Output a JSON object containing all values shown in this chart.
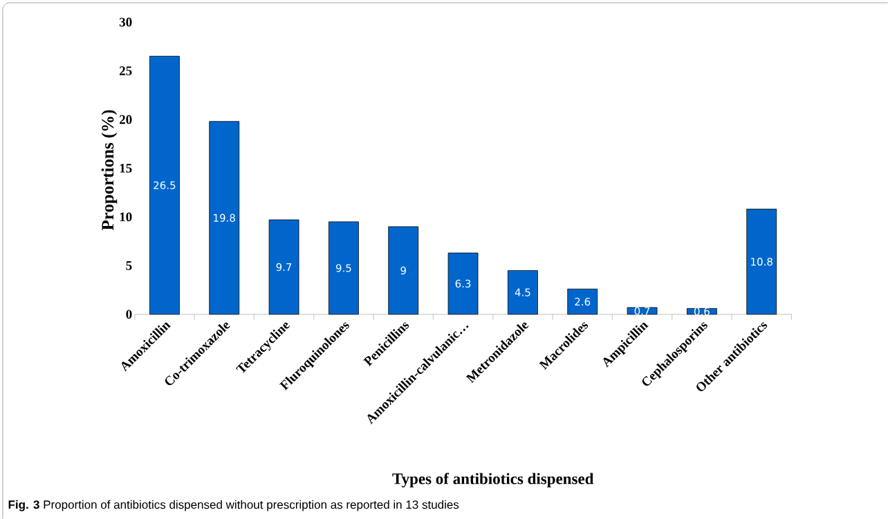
{
  "chart_data": {
    "type": "bar",
    "categories": [
      "Amoxicillin",
      "Co-trimoxazole",
      "Tetracycline",
      "Fluroquinolones",
      "Penicillins",
      "Amoxicillin-calvulanic…",
      "Metronidazole",
      "Macrolides",
      "Ampicillin",
      "Cephalosporins",
      "Other antibiotics"
    ],
    "values": [
      26.5,
      19.8,
      9.7,
      9.5,
      9,
      6.3,
      4.5,
      2.6,
      0.7,
      0.6,
      10.8
    ],
    "color": "#0066cc",
    "data_labels": true,
    "xlabel": "Types  of antibiotics dispensed",
    "ylabel": "Proportions (%)",
    "ylim": [
      0,
      30
    ],
    "yticks": [
      0,
      5,
      10,
      15,
      20,
      25,
      30
    ],
    "annotations": [
      "**Fig. 3**  Proportion of antibiotics dispensed without prescription as reported in 13 studies"
    ]
  }
}
